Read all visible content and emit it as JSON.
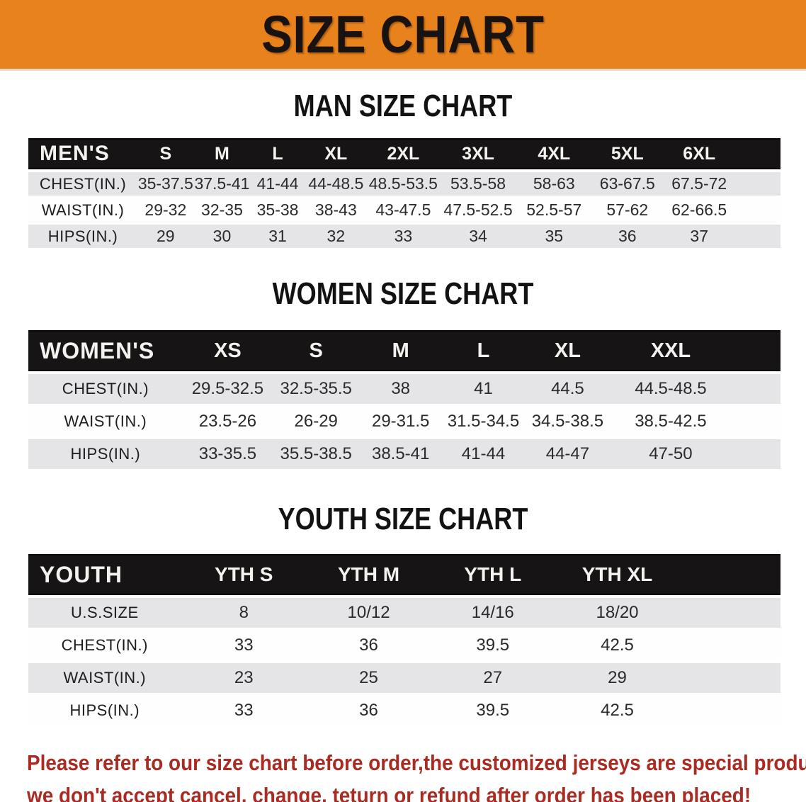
{
  "banner": {
    "title": "SIZE CHART",
    "bg_color": "#E8821C",
    "text_color": "#181210"
  },
  "tables": {
    "men": {
      "title": "MAN SIZE CHART",
      "header_label": "MEN'S",
      "columns": [
        "S",
        "M",
        "L",
        "XL",
        "2XL",
        "3XL",
        "4XL",
        "5XL",
        "6XL"
      ],
      "rows": [
        {
          "label": "CHEST(IN.)",
          "values": [
            "35-37.5",
            "37.5-41",
            "41-44",
            "44-48.5",
            "48.5-53.5",
            "53.5-58",
            "58-63",
            "63-67.5",
            "67.5-72"
          ]
        },
        {
          "label": "WAIST(IN.)",
          "values": [
            "29-32",
            "32-35",
            "35-38",
            "38-43",
            "43-47.5",
            "47.5-52.5",
            "52.5-57",
            "57-62",
            "62-66.5"
          ]
        },
        {
          "label": "HIPS(IN.)",
          "values": [
            "29",
            "30",
            "31",
            "32",
            "33",
            "34",
            "35",
            "36",
            "37"
          ]
        }
      ]
    },
    "women": {
      "title": "WOMEN SIZE CHART",
      "header_label": "WOMEN'S",
      "columns": [
        "XS",
        "S",
        "M",
        "L",
        "XL",
        "XXL"
      ],
      "rows": [
        {
          "label": "CHEST(IN.)",
          "values": [
            "29.5-32.5",
            "32.5-35.5",
            "38",
            "41",
            "44.5",
            "44.5-48.5"
          ]
        },
        {
          "label": "WAIST(IN.)",
          "values": [
            "23.5-26",
            "26-29",
            "29-31.5",
            "31.5-34.5",
            "34.5-38.5",
            "38.5-42.5"
          ]
        },
        {
          "label": "HIPS(IN.)",
          "values": [
            "33-35.5",
            "35.5-38.5",
            "38.5-41",
            "41-44",
            "44-47",
            "47-50"
          ]
        }
      ]
    },
    "youth": {
      "title": "YOUTH SIZE CHART",
      "header_label": "YOUTH",
      "columns": [
        "YTH S",
        "YTH M",
        "YTH L",
        "YTH XL"
      ],
      "rows": [
        {
          "label": "U.S.SIZE",
          "values": [
            "8",
            "10/12",
            "14/16",
            "18/20"
          ]
        },
        {
          "label": "CHEST(IN.)",
          "values": [
            "33",
            "36",
            "39.5",
            "42.5"
          ]
        },
        {
          "label": "WAIST(IN.)",
          "values": [
            "23",
            "25",
            "27",
            "29"
          ]
        },
        {
          "label": "HIPS(IN.)",
          "values": [
            "33",
            "36",
            "39.5",
            "42.5"
          ]
        }
      ]
    }
  },
  "disclaimer": {
    "line1": "Please refer to our size chart before order,the customized jerseys are special products,",
    "line2": "we don't accept cancel, change, teturn or refund after order has been placed!",
    "color": "#A92B22"
  }
}
